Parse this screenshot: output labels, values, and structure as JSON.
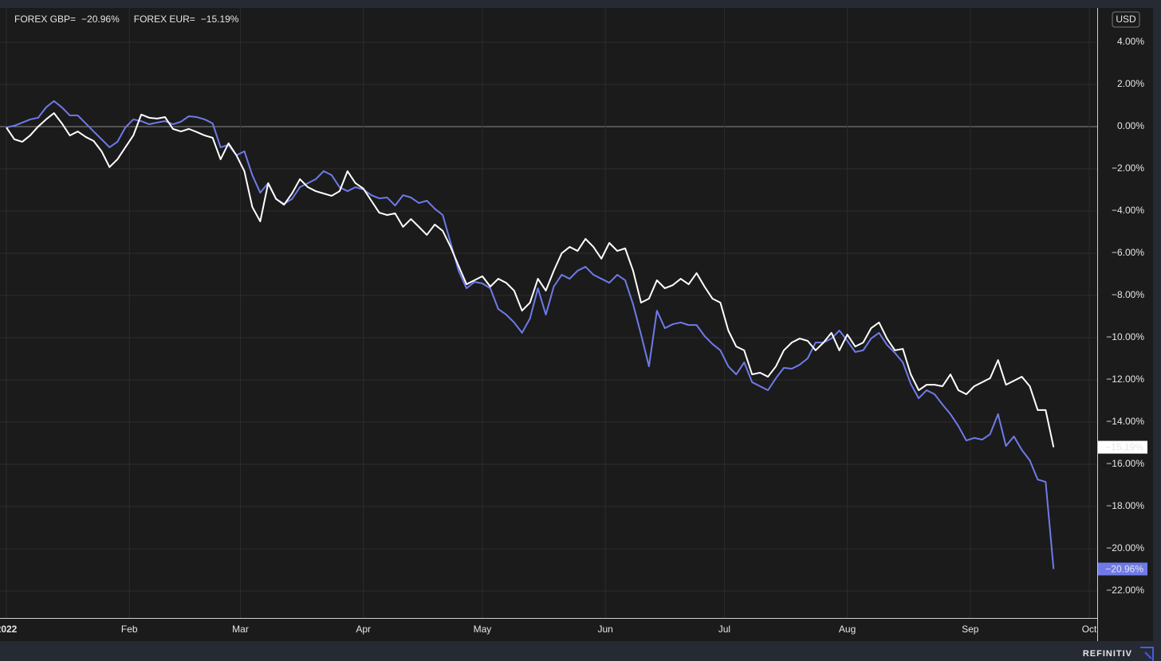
{
  "chart_data": {
    "type": "line",
    "currency": "USD",
    "brand": "REFINITIV",
    "x": [
      1,
      3,
      5,
      7,
      9,
      11,
      13,
      15,
      17,
      19,
      21,
      23,
      25,
      27,
      29,
      31,
      33,
      35,
      37,
      39,
      41,
      43,
      45,
      47,
      49,
      51,
      53,
      55,
      57,
      59,
      61,
      63,
      65,
      67,
      69,
      71,
      73,
      75,
      77,
      79,
      81,
      83,
      85,
      87,
      89,
      91,
      93,
      95,
      97,
      99,
      101,
      103,
      105,
      107,
      109,
      111,
      113,
      115,
      117,
      119,
      121,
      123,
      125,
      127,
      129,
      131,
      133,
      135,
      137,
      139,
      141,
      143,
      145,
      147,
      149,
      151,
      153,
      155,
      157,
      159,
      161,
      163,
      165,
      167,
      169,
      171,
      173,
      175,
      177,
      179,
      181,
      183,
      185,
      187,
      189,
      191,
      193,
      195,
      197,
      199,
      201,
      203,
      205,
      207,
      209,
      211,
      213,
      215,
      217,
      219,
      221,
      223,
      225,
      227,
      229,
      231,
      233,
      235,
      237,
      239,
      241,
      243,
      245,
      247,
      249,
      251,
      253,
      255,
      257,
      259,
      261,
      263,
      265
    ],
    "series": [
      {
        "name": "FOREX GBP=",
        "color": "#6f7ae8",
        "last_value_label": "−20.96%",
        "values": [
          -0.04,
          0.04,
          0.19,
          0.34,
          0.42,
          0.91,
          1.21,
          0.91,
          0.53,
          0.53,
          0.15,
          -0.23,
          -0.6,
          -0.98,
          -0.72,
          -0.04,
          0.34,
          0.26,
          0.11,
          0.19,
          0.26,
          0.11,
          0.23,
          0.49,
          0.45,
          0.34,
          0.15,
          -0.98,
          -0.87,
          -1.36,
          -1.17,
          -2.3,
          -3.13,
          -2.68,
          -3.43,
          -3.66,
          -3.43,
          -2.87,
          -2.68,
          -2.49,
          -2.11,
          -2.3,
          -2.87,
          -3.06,
          -2.87,
          -2.98,
          -3.25,
          -3.4,
          -3.36,
          -3.74,
          -3.25,
          -3.36,
          -3.62,
          -3.51,
          -3.89,
          -4.19,
          -5.51,
          -6.83,
          -7.66,
          -7.36,
          -7.43,
          -7.66,
          -8.64,
          -8.91,
          -9.28,
          -9.77,
          -9.09,
          -7.66,
          -8.91,
          -7.58,
          -7.02,
          -7.21,
          -6.83,
          -6.64,
          -7.02,
          -7.21,
          -7.4,
          -7.02,
          -7.28,
          -8.42,
          -9.85,
          -11.36,
          -8.72,
          -9.55,
          -9.36,
          -9.28,
          -9.4,
          -9.4,
          -9.92,
          -10.3,
          -10.6,
          -11.36,
          -11.74,
          -11.17,
          -12.11,
          -12.3,
          -12.49,
          -11.92,
          -11.43,
          -11.47,
          -11.28,
          -10.98,
          -10.23,
          -10.23,
          -10.04,
          -9.66,
          -10.15,
          -10.68,
          -10.6,
          -10.04,
          -9.77,
          -10.34,
          -10.72,
          -11.17,
          -12.19,
          -12.87,
          -12.49,
          -12.68,
          -13.17,
          -13.62,
          -14.19,
          -14.87,
          -14.75,
          -14.83,
          -14.57,
          -13.62,
          -15.13,
          -14.68,
          -15.32,
          -15.81,
          -16.72,
          -16.83,
          -20.96
        ]
      },
      {
        "name": "FOREX EUR=",
        "color": "#ffffff",
        "last_value_label": "−15.19%",
        "values": [
          -0.04,
          -0.6,
          -0.72,
          -0.42,
          0,
          0.34,
          0.64,
          0.15,
          -0.42,
          -0.23,
          -0.49,
          -0.68,
          -1.17,
          -1.92,
          -1.55,
          -0.98,
          -0.42,
          0.57,
          0.42,
          0.38,
          0.45,
          -0.11,
          -0.23,
          -0.11,
          -0.26,
          -0.42,
          -0.53,
          -1.55,
          -0.79,
          -1.36,
          -2.11,
          -3.81,
          -4.49,
          -2.68,
          -3.43,
          -3.7,
          -3.17,
          -2.49,
          -2.87,
          -3.06,
          -3.17,
          -3.28,
          -3.06,
          -2.11,
          -2.68,
          -2.94,
          -3.51,
          -4.08,
          -4.19,
          -4.11,
          -4.75,
          -4.38,
          -4.75,
          -5.13,
          -4.64,
          -4.94,
          -5.7,
          -6.6,
          -7.47,
          -7.28,
          -7.09,
          -7.58,
          -7.21,
          -7.4,
          -7.77,
          -8.72,
          -8.34,
          -7.21,
          -7.77,
          -6.83,
          -6.0,
          -5.7,
          -5.89,
          -5.32,
          -5.7,
          -6.26,
          -5.51,
          -5.89,
          -5.77,
          -6.83,
          -8.34,
          -8.15,
          -7.28,
          -7.66,
          -7.51,
          -7.21,
          -7.47,
          -6.94,
          -7.58,
          -8.15,
          -8.34,
          -9.66,
          -10.42,
          -10.6,
          -11.74,
          -11.66,
          -11.85,
          -11.36,
          -10.6,
          -10.23,
          -10.04,
          -10.15,
          -10.6,
          -10.23,
          -9.77,
          -10.6,
          -9.85,
          -10.42,
          -10.23,
          -9.55,
          -9.28,
          -10.04,
          -10.6,
          -10.53,
          -11.74,
          -12.49,
          -12.23,
          -12.23,
          -12.3,
          -11.74,
          -12.49,
          -12.68,
          -12.3,
          -12.11,
          -11.92,
          -11.06,
          -12.23,
          -12.04,
          -11.85,
          -12.3,
          -13.43,
          -13.43,
          -15.19
        ]
      }
    ],
    "xlim": [
      1,
      276
    ],
    "xticks": [
      {
        "value": 1,
        "label": "2022"
      },
      {
        "value": 32,
        "label": "Feb"
      },
      {
        "value": 60,
        "label": "Mar"
      },
      {
        "value": 91,
        "label": "Apr"
      },
      {
        "value": 121,
        "label": "May"
      },
      {
        "value": 152,
        "label": "Jun"
      },
      {
        "value": 182,
        "label": "Jul"
      },
      {
        "value": 213,
        "label": "Aug"
      },
      {
        "value": 244,
        "label": "Sep"
      },
      {
        "value": 274,
        "label": "Oct"
      }
    ],
    "ylim": [
      -23.28,
      5.62
    ],
    "yticks": [
      {
        "value": 4,
        "label": "4.00%"
      },
      {
        "value": 2,
        "label": "2.00%"
      },
      {
        "value": 0,
        "label": "0.00%"
      },
      {
        "value": -2,
        "label": "−2.00%"
      },
      {
        "value": -4,
        "label": "−4.00%"
      },
      {
        "value": -6,
        "label": "−6.00%"
      },
      {
        "value": -8,
        "label": "−8.00%"
      },
      {
        "value": -10,
        "label": "−10.00%"
      },
      {
        "value": -12,
        "label": "−12.00%"
      },
      {
        "value": -14,
        "label": "−14.00%"
      },
      {
        "value": -16,
        "label": "−16.00%"
      },
      {
        "value": -18,
        "label": "−18.00%"
      },
      {
        "value": -20,
        "label": "−20.00%"
      },
      {
        "value": -22,
        "label": "−22.00%"
      }
    ],
    "baseline": 0,
    "grid": true
  }
}
